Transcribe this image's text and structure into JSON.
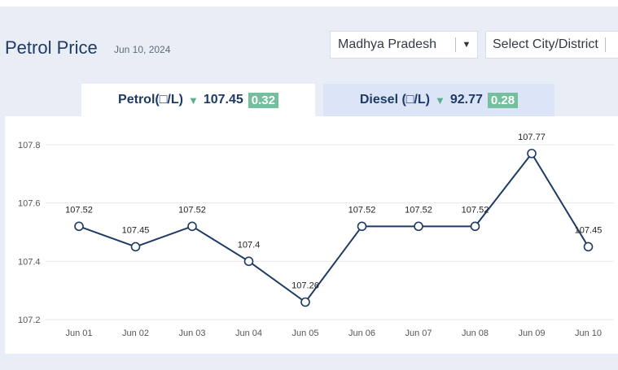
{
  "header": {
    "title": "Petrol Price",
    "date": "Jun 10, 2024",
    "state_select": "Madhya Pradesh",
    "city_select": "Select City/District"
  },
  "tabs": [
    {
      "label": "Petrol(□/L)",
      "price": "107.45",
      "change": "0.32",
      "direction": "down",
      "active": true
    },
    {
      "label": "Diesel (□/L)",
      "price": "92.77",
      "change": "0.28",
      "direction": "down",
      "active": false
    }
  ],
  "colors": {
    "line": "#1f3a63",
    "badge": "#74bf9e",
    "active_tab": "#ffffff",
    "inactive_tab": "#dbe5f7"
  },
  "chart_data": {
    "type": "line",
    "categories": [
      "Jun 01",
      "Jun 02",
      "Jun 03",
      "Jun 04",
      "Jun 05",
      "Jun 06",
      "Jun 07",
      "Jun 08",
      "Jun 09",
      "Jun 10"
    ],
    "values": [
      107.52,
      107.45,
      107.52,
      107.4,
      107.26,
      107.52,
      107.52,
      107.52,
      107.77,
      107.45
    ],
    "labels": [
      "107.52",
      "107.45",
      "107.52",
      "107.4",
      "107.26",
      "107.52",
      "107.52",
      "107.52",
      "107.77",
      "107.45"
    ],
    "yticks": [
      "107.8",
      "107.6",
      "107.4",
      "107.2"
    ],
    "ylim": [
      107.2,
      107.8
    ],
    "grid": true
  }
}
